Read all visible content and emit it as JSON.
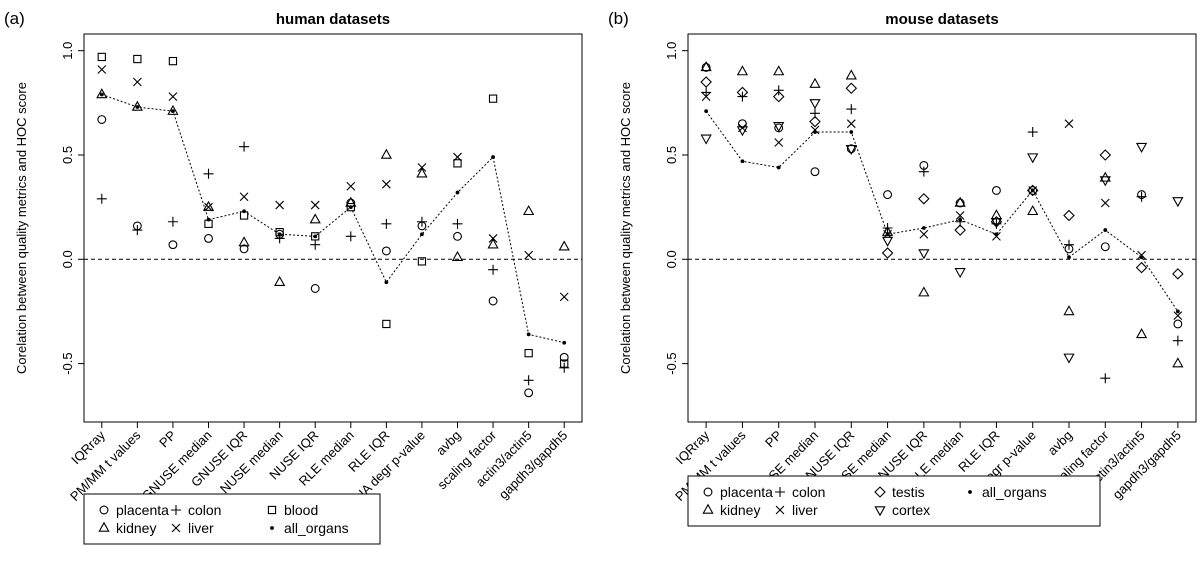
{
  "chart_data": [
    {
      "type": "scatter",
      "panel_label": "(a)",
      "title": "human datasets",
      "ylabel": "Corelation between quality metrics and HOC score",
      "ylim": [
        -0.78,
        1.08
      ],
      "yticks": [
        -0.5,
        0.0,
        0.5,
        1.0
      ],
      "ytick_labels": [
        "-0.5",
        "0.0",
        "0.5",
        "1.0"
      ],
      "zero_line": true,
      "categories": [
        "IQRray",
        "PM/MM t values",
        "PP",
        "GNUSE median",
        "GNUSE IQR",
        "NUSE median",
        "NUSE IQR",
        "RLE median",
        "RLE IQR",
        "RNA degr p-value",
        "avbg",
        "scaling factor",
        "actin3/actin5",
        "gapdh3/gapdh5"
      ],
      "series": [
        {
          "name": "placenta",
          "marker": "circle",
          "values": [
            0.67,
            0.16,
            0.07,
            0.1,
            0.05,
            0.12,
            -0.14,
            0.27,
            0.04,
            0.16,
            0.11,
            -0.2,
            -0.64,
            -0.47
          ]
        },
        {
          "name": "kidney",
          "marker": "triangle-up",
          "values": [
            0.79,
            0.73,
            0.71,
            0.25,
            0.08,
            -0.11,
            0.19,
            0.27,
            0.5,
            0.41,
            0.01,
            0.07,
            0.23,
            0.06
          ]
        },
        {
          "name": "colon",
          "marker": "plus",
          "values": [
            0.29,
            0.14,
            0.18,
            0.41,
            0.54,
            0.1,
            0.07,
            0.11,
            0.17,
            0.18,
            0.17,
            -0.05,
            -0.58,
            -0.52
          ]
        },
        {
          "name": "liver",
          "marker": "cross",
          "values": [
            0.91,
            0.85,
            0.78,
            0.25,
            0.3,
            0.26,
            0.26,
            0.35,
            0.36,
            0.44,
            0.49,
            0.1,
            0.02,
            -0.18
          ]
        },
        {
          "name": "blood",
          "marker": "square",
          "values": [
            0.97,
            0.96,
            0.95,
            0.17,
            0.21,
            0.13,
            0.11,
            0.25,
            -0.31,
            -0.01,
            0.46,
            0.77,
            -0.45,
            -0.5
          ]
        },
        {
          "name": "all_organs",
          "marker": "dot",
          "line": true,
          "values": [
            0.79,
            0.73,
            0.71,
            0.19,
            0.23,
            0.12,
            0.11,
            0.25,
            -0.11,
            0.12,
            0.32,
            0.49,
            -0.36,
            -0.4
          ]
        }
      ],
      "legend": {
        "placement": "bottom-left",
        "rows": [
          [
            "placenta",
            "colon",
            "blood"
          ],
          [
            "kidney",
            "liver",
            "all_organs"
          ]
        ]
      }
    },
    {
      "type": "scatter",
      "panel_label": "(b)",
      "title": "mouse datasets",
      "ylabel": "Corelation between quality metrics and HOC score",
      "ylim": [
        -0.78,
        1.08
      ],
      "yticks": [
        -0.5,
        0.0,
        0.5,
        1.0
      ],
      "ytick_labels": [
        "-0.5",
        "0.0",
        "0.5",
        "1.0"
      ],
      "zero_line": true,
      "categories": [
        "IQRray",
        "PM/MM t values",
        "PP",
        "GNUSE median",
        "GNUSE IQR",
        "NUSE median",
        "NUSE IQR",
        "RLE median",
        "RLE IQR",
        "RNA degr p-value",
        "avbg",
        "scaling factor",
        "actin3/actin5",
        "gapdh3/gapdh5"
      ],
      "series": [
        {
          "name": "placenta",
          "marker": "circle",
          "values": [
            0.92,
            0.65,
            0.63,
            0.42,
            0.53,
            0.31,
            0.45,
            0.27,
            0.33,
            0.33,
            0.05,
            0.06,
            0.31,
            -0.31
          ]
        },
        {
          "name": "kidney",
          "marker": "triangle-up",
          "values": [
            0.92,
            0.9,
            0.9,
            0.84,
            0.88,
            0.13,
            -0.16,
            0.27,
            0.21,
            0.23,
            -0.25,
            0.39,
            -0.36,
            -0.5
          ]
        },
        {
          "name": "colon",
          "marker": "plus",
          "values": [
            0.8,
            0.78,
            0.81,
            0.7,
            0.72,
            0.15,
            0.42,
            0.18,
            0.17,
            0.61,
            0.07,
            -0.57,
            0.3,
            -0.39
          ]
        },
        {
          "name": "liver",
          "marker": "cross",
          "values": [
            0.78,
            0.63,
            0.56,
            0.62,
            0.65,
            0.12,
            0.12,
            0.21,
            0.11,
            0.33,
            0.65,
            0.27,
            0.02,
            -0.27
          ]
        },
        {
          "name": "testis",
          "marker": "diamond",
          "values": [
            0.85,
            0.8,
            0.78,
            0.66,
            0.82,
            0.03,
            0.29,
            0.14,
            0.18,
            0.33,
            0.21,
            0.5,
            -0.04,
            -0.07
          ]
        },
        {
          "name": "cortex",
          "marker": "triangle-down",
          "values": [
            0.58,
            0.62,
            0.64,
            0.75,
            0.53,
            0.09,
            0.03,
            -0.06,
            0.18,
            0.49,
            -0.47,
            0.38,
            0.54,
            0.28
          ]
        },
        {
          "name": "all_organs",
          "marker": "dot",
          "line": true,
          "values": [
            0.71,
            0.47,
            0.44,
            0.61,
            0.61,
            0.12,
            0.15,
            0.19,
            0.12,
            0.33,
            0.01,
            0.14,
            0.01,
            -0.25
          ]
        }
      ],
      "legend": {
        "placement": "bottom-left",
        "rows": [
          [
            "placenta",
            "colon",
            "testis",
            "all_organs"
          ],
          [
            "kidney",
            "liver",
            "cortex"
          ]
        ]
      }
    }
  ]
}
